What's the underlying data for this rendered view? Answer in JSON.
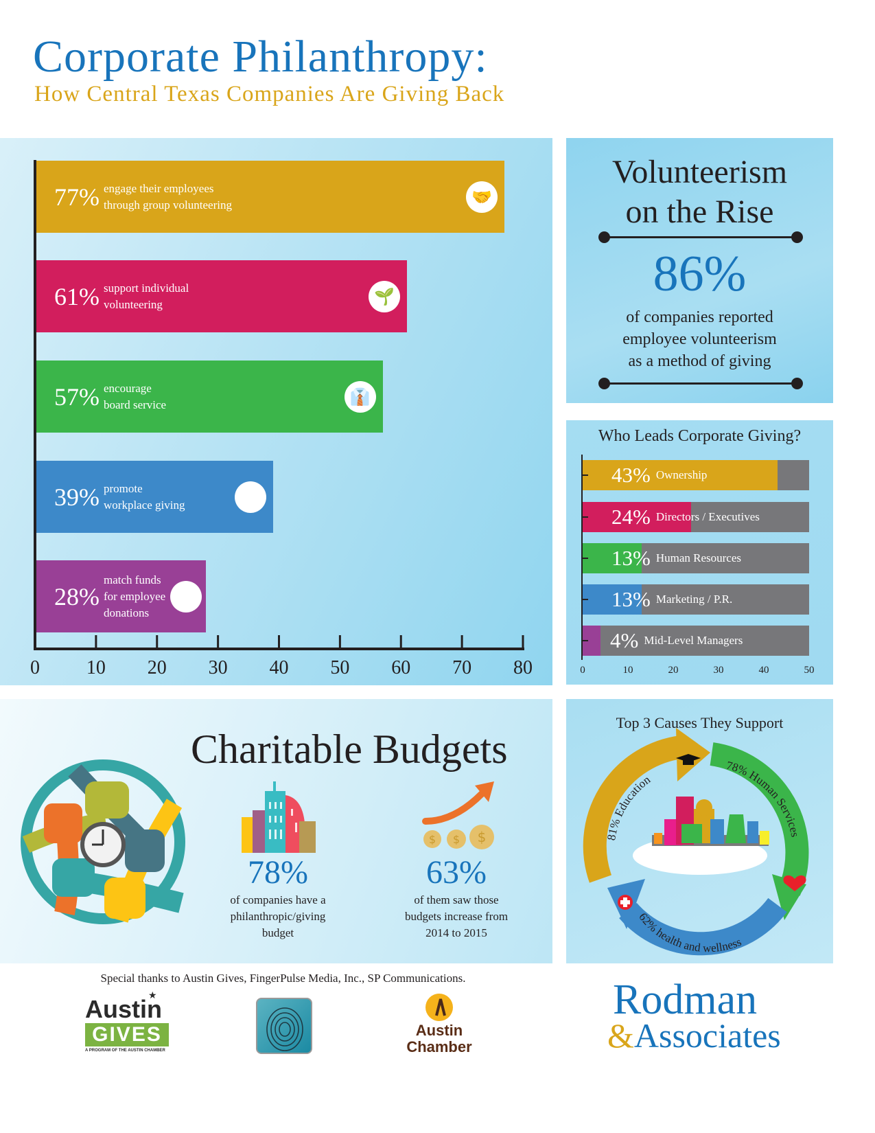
{
  "header": {
    "title": "Corporate Philanthropy:",
    "subtitle": "How Central Texas Companies Are Giving Back"
  },
  "colors": {
    "title_blue": "#1874bb",
    "gold": "#d9a51a",
    "magenta": "#d21e5d",
    "green": "#3bb54a",
    "blue": "#3d89c9",
    "purple": "#994096",
    "gray": "#77777a"
  },
  "chart_data": [
    {
      "type": "bar",
      "orientation": "horizontal",
      "title": "",
      "categories": [
        "engage their employees through group volunteering",
        "support individual volunteering",
        "encourage board service",
        "promote workplace giving",
        "match funds for employee donations"
      ],
      "values": [
        77,
        61,
        57,
        39,
        28
      ],
      "value_labels": [
        "77%",
        "61%",
        "57%",
        "39%",
        "28%"
      ],
      "desc_lines": [
        [
          "engage their employees",
          "through group volunteering"
        ],
        [
          "support individual",
          "volunteering"
        ],
        [
          "encourage",
          "board service"
        ],
        [
          "promote",
          "workplace giving"
        ],
        [
          "match funds",
          "for employee",
          "donations"
        ]
      ],
      "bar_colors": [
        "#d9a51a",
        "#d21e5d",
        "#3bb54a",
        "#3d89c9",
        "#994096"
      ],
      "icons": [
        "hands-together-icon",
        "hands-plant-icon",
        "necktie-icon",
        "city-buildings-icon",
        "balance-scale-icon"
      ],
      "xlim": [
        0,
        80
      ],
      "xticks": [
        "0",
        "10",
        "20",
        "30",
        "40",
        "50",
        "60",
        "70",
        "80"
      ],
      "xlabel": "",
      "ylabel": "",
      "grid": false
    },
    {
      "type": "bar",
      "orientation": "horizontal",
      "stacked_on_background": true,
      "title": "Who Leads Corporate Giving?",
      "categories": [
        "Ownership",
        "Directors / Executives",
        "Human Resources",
        "Marketing / P.R.",
        "Mid-Level Managers"
      ],
      "values": [
        43,
        24,
        13,
        13,
        4
      ],
      "value_labels": [
        "43%",
        "24%",
        "13%",
        "13%",
        "4%"
      ],
      "bar_colors": [
        "#d9a51a",
        "#d21e5d",
        "#3bb54a",
        "#3d89c9",
        "#994096"
      ],
      "background_color": "#77777a",
      "xlim": [
        0,
        50
      ],
      "xticks": [
        "0",
        "10",
        "20",
        "30",
        "40",
        "50"
      ],
      "grid": false
    }
  ],
  "volunteerism": {
    "title_line1": "Volunteerism",
    "title_line2": "on the Rise",
    "stat": "86%",
    "desc_lines": [
      "of companies reported",
      "employee volunteerism",
      "as a method of giving"
    ]
  },
  "budgets": {
    "title": "Charitable Budgets",
    "stat1": {
      "value": "78%",
      "lines": [
        "of companies have a",
        "philanthropic/giving",
        "budget"
      ],
      "icon": "city-buildings-icon"
    },
    "stat2": {
      "value": "63%",
      "lines": [
        "of them saw those",
        "budgets increase from",
        "2014 to 2015"
      ],
      "icon": "coins-up-arrow-icon"
    },
    "illustration": "hands-clock-icon"
  },
  "causes": {
    "title": "Top 3 Causes They Support",
    "items": [
      {
        "label": "81% Education",
        "value": 81,
        "color": "#d9a51a",
        "icon": "graduation-cap-icon"
      },
      {
        "label": "78% Human Services",
        "value": 78,
        "color": "#3bb54a",
        "icon": "heart-icon"
      },
      {
        "label": "62% health and wellness",
        "value": 62,
        "color": "#3d89c9",
        "icon": "medical-cross-icon"
      }
    ]
  },
  "footer": {
    "thanks": "Special thanks to Austin Gives, FingerPulse Media, Inc., SP Communications.",
    "logos": {
      "austin_gives": {
        "line1": "Austin",
        "line2": "GIVES",
        "tagline": "A PROGRAM OF THE AUSTIN CHAMBER"
      },
      "fingerpulse": {
        "name": "fingerprint-logo"
      },
      "austin_chamber": {
        "line1": "Austin",
        "line2": "Chamber"
      }
    },
    "brand": {
      "line1": "Rodman",
      "amp": "&",
      "line2": "Associates"
    }
  }
}
